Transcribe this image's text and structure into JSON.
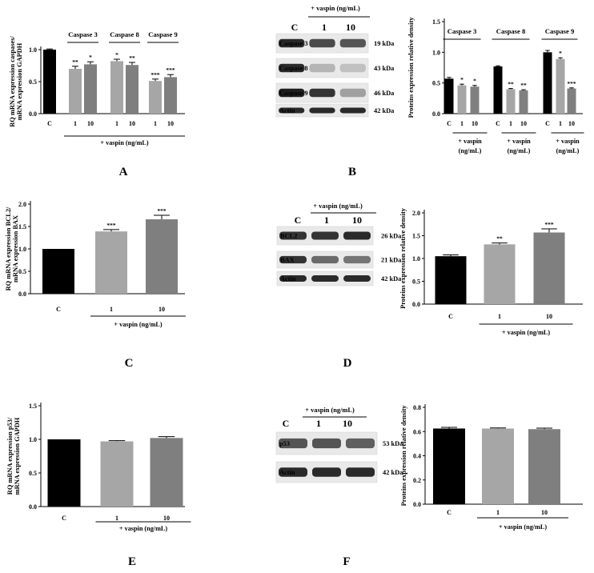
{
  "panels": [
    {
      "id": "A",
      "letter": "A",
      "kind": "chart",
      "chart": 0
    },
    {
      "id": "B",
      "letter": "B",
      "kind": "blot",
      "blot": 0,
      "chart": 1
    },
    {
      "id": "C",
      "letter": "C",
      "kind": "chart",
      "chart": 2
    },
    {
      "id": "D",
      "letter": "D",
      "kind": "blot",
      "blot": 1,
      "chart": 3
    },
    {
      "id": "E",
      "letter": "E",
      "kind": "chart",
      "chart": 4
    },
    {
      "id": "F",
      "letter": "F",
      "kind": "blot",
      "blot": 2,
      "chart": 5
    }
  ],
  "blots": [
    {
      "header": "+ vaspin (ng/mL)",
      "lanes": [
        "C",
        "1",
        "10"
      ],
      "rows": [
        {
          "protein": "Caspase 3",
          "size": "19 kDa",
          "intensity": [
            0.9,
            0.75,
            0.7
          ]
        },
        {
          "protein": "Caspase 8",
          "size": "43 kDa",
          "intensity": [
            0.9,
            0.25,
            0.2
          ]
        },
        {
          "protein": "Caspase 9",
          "size": "46 kDa",
          "intensity": [
            0.95,
            0.85,
            0.35
          ]
        },
        {
          "protein": "Actin",
          "size": "42 kDa",
          "intensity": [
            0.9,
            0.9,
            0.9
          ]
        }
      ]
    },
    {
      "header": "+ vaspin (ng/mL)",
      "lanes": [
        "C",
        "1",
        "10"
      ],
      "rows": [
        {
          "protein": "BCL2",
          "size": "26 kDa",
          "intensity": [
            0.85,
            0.85,
            0.9
          ]
        },
        {
          "protein": "BAX",
          "size": "21 kDa",
          "intensity": [
            0.85,
            0.6,
            0.55
          ]
        },
        {
          "protein": "Actin",
          "size": "42 kDa",
          "intensity": [
            0.9,
            0.9,
            0.9
          ]
        }
      ]
    },
    {
      "header": "+ vaspin (ng/mL)",
      "lanes": [
        "C",
        "1",
        "10"
      ],
      "rows": [
        {
          "protein": "p53",
          "size": "53 kDa",
          "intensity": [
            0.7,
            0.7,
            0.65
          ]
        },
        {
          "protein": "Actin",
          "size": "42 kDa",
          "intensity": [
            0.9,
            0.9,
            0.9
          ]
        }
      ]
    }
  ],
  "chart_data": [
    {
      "panel": "A",
      "type": "bar",
      "ylabel": [
        "RQ mRNA expression caspases/",
        "mRNA expression GAPDH"
      ],
      "ylim": [
        0,
        1.0
      ],
      "yticks": [
        "0.0",
        "0.5",
        "1.0"
      ],
      "categories": [
        "C",
        "1",
        "10",
        "1",
        "10",
        "1",
        "10"
      ],
      "values": [
        1.0,
        0.7,
        0.77,
        0.82,
        0.76,
        0.51,
        0.57
      ],
      "errors": [
        0.01,
        0.04,
        0.04,
        0.03,
        0.04,
        0.03,
        0.04
      ],
      "significance": [
        "",
        "**",
        "*",
        "*",
        "**",
        "***",
        "***"
      ],
      "colors": [
        "#000000",
        "#a6a6a6",
        "#7f7f7f",
        "#a6a6a6",
        "#7f7f7f",
        "#a6a6a6",
        "#7f7f7f"
      ],
      "groups": [
        {
          "label": "Caspase 3",
          "from": 1,
          "to": 2
        },
        {
          "label": "Caspase 8",
          "from": 3,
          "to": 4
        },
        {
          "label": "Caspase 9",
          "from": 5,
          "to": 6
        }
      ],
      "treatment_labels": [
        {
          "text": "+ vaspin (ng/mL)",
          "from": 1,
          "to": 6
        }
      ]
    },
    {
      "panel": "B",
      "type": "bar",
      "ylabel": [
        "Proteins expression relative density"
      ],
      "ylim": [
        0,
        1.5
      ],
      "yticks": [
        "0.0",
        "0.5",
        "1.0",
        "1.5"
      ],
      "categories": [
        "C",
        "1",
        "10",
        "C",
        "1",
        "10",
        "C",
        "1",
        "10"
      ],
      "values": [
        0.57,
        0.46,
        0.44,
        0.77,
        0.4,
        0.38,
        1.0,
        0.89,
        0.41
      ],
      "errors": [
        0.02,
        0.02,
        0.02,
        0.01,
        0.01,
        0.01,
        0.03,
        0.02,
        0.01
      ],
      "significance": [
        "",
        "*",
        "*",
        "",
        "**",
        "**",
        "",
        "*",
        "***"
      ],
      "colors": [
        "#000000",
        "#a6a6a6",
        "#7f7f7f",
        "#000000",
        "#a6a6a6",
        "#7f7f7f",
        "#000000",
        "#a6a6a6",
        "#7f7f7f"
      ],
      "groups": [
        {
          "label": "Caspase 3",
          "from": 0,
          "to": 2
        },
        {
          "label": "Caspase 8",
          "from": 3,
          "to": 5
        },
        {
          "label": "Caspase 9",
          "from": 6,
          "to": 8
        }
      ],
      "treatment_labels": [
        {
          "text": "+ vaspin",
          "text2": "(ng/mL)",
          "from": 1,
          "to": 2
        },
        {
          "text": "+ vaspin",
          "text2": "(ng/mL)",
          "from": 4,
          "to": 5
        },
        {
          "text": "+ vaspin",
          "text2": "(ng/mL)",
          "from": 7,
          "to": 8
        }
      ]
    },
    {
      "panel": "C",
      "type": "bar",
      "ylabel": [
        "RQ mRNA expression BCL2/",
        "mRNA expression BAX"
      ],
      "ylim": [
        0,
        2.0
      ],
      "yticks": [
        "0.0",
        "0.5",
        "1.0",
        "1.5",
        "2.0"
      ],
      "categories": [
        "C",
        "1",
        "10"
      ],
      "values": [
        1.0,
        1.39,
        1.66
      ],
      "errors": [
        0.0,
        0.04,
        0.09
      ],
      "significance": [
        "",
        "***",
        "***"
      ],
      "colors": [
        "#000000",
        "#a6a6a6",
        "#7f7f7f"
      ],
      "treatment_labels": [
        {
          "text": "+ vaspin (ng/mL)",
          "from": 1,
          "to": 2
        }
      ]
    },
    {
      "panel": "D",
      "type": "bar",
      "ylabel": [
        "Proteins expression relative density"
      ],
      "ylim": [
        0,
        2.0
      ],
      "yticks": [
        "0.0",
        "0.5",
        "1.0",
        "1.5",
        "2.0"
      ],
      "categories": [
        "C",
        "1",
        "10"
      ],
      "values": [
        1.05,
        1.31,
        1.57
      ],
      "errors": [
        0.03,
        0.03,
        0.08
      ],
      "significance": [
        "",
        "**",
        "***"
      ],
      "colors": [
        "#000000",
        "#a6a6a6",
        "#7f7f7f"
      ],
      "treatment_labels": [
        {
          "text": "+ vaspin (ng/mL)",
          "from": 1,
          "to": 2
        }
      ]
    },
    {
      "panel": "E",
      "type": "bar",
      "ylabel": [
        "RQ mRNA expression p53/",
        "mRNA expression GAPDH"
      ],
      "ylim": [
        0,
        1.5
      ],
      "yticks": [
        "0.0",
        "0.5",
        "1.0",
        "1.5"
      ],
      "categories": [
        "C",
        "1",
        "10"
      ],
      "values": [
        1.0,
        0.97,
        1.02
      ],
      "errors": [
        0.0,
        0.01,
        0.02
      ],
      "significance": [
        "",
        "",
        ""
      ],
      "colors": [
        "#000000",
        "#a6a6a6",
        "#7f7f7f"
      ],
      "treatment_labels": [
        {
          "text": "+ vaspin (ng/mL)",
          "from": 1,
          "to": 2
        }
      ]
    },
    {
      "panel": "F",
      "type": "bar",
      "ylabel": [
        "Proteins expression relative density"
      ],
      "ylim": [
        0,
        0.8
      ],
      "yticks": [
        "0.0",
        "0.2",
        "0.4",
        "0.6",
        "0.8"
      ],
      "categories": [
        "C",
        "1",
        "10"
      ],
      "values": [
        0.625,
        0.625,
        0.62
      ],
      "errors": [
        0.01,
        0.005,
        0.008
      ],
      "significance": [
        "",
        "",
        ""
      ],
      "colors": [
        "#000000",
        "#a6a6a6",
        "#7f7f7f"
      ],
      "treatment_labels": [
        {
          "text": "+ vaspin (ng/mL)",
          "from": 1,
          "to": 2
        }
      ]
    }
  ]
}
